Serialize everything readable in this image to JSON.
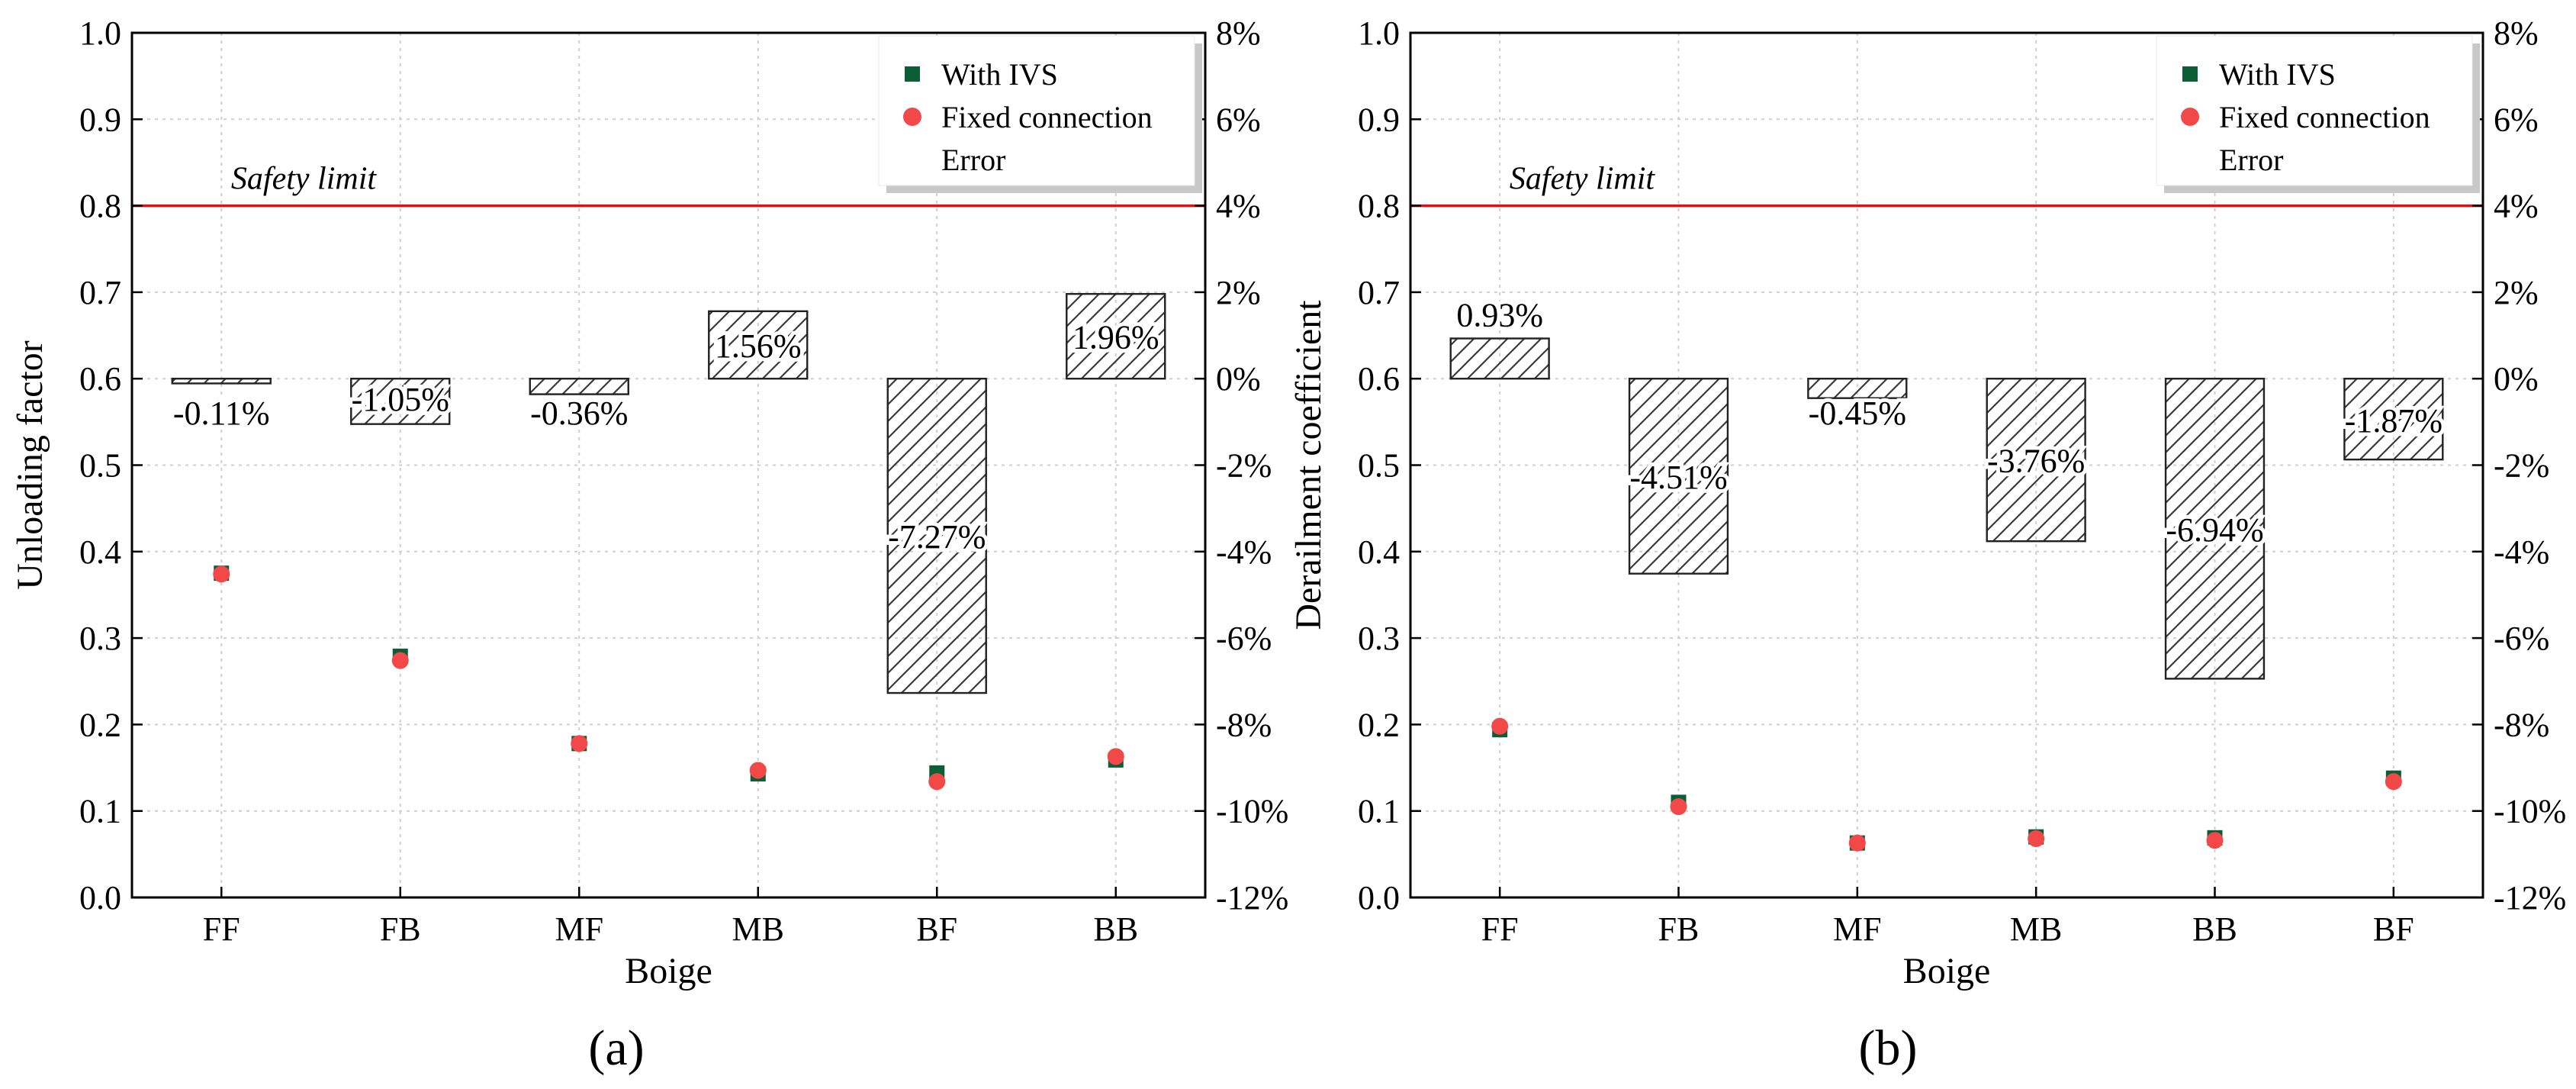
{
  "chart_data": [
    {
      "type": "bar+scatter",
      "panel_label": "(a)",
      "xlabel": "Boige",
      "ylabel": "Unloading factor",
      "categories": [
        "FF",
        "FB",
        "MF",
        "MB",
        "BF",
        "BB"
      ],
      "ylim": [
        0.0,
        1.0
      ],
      "y_ticks": [
        "0.0",
        "0.1",
        "0.2",
        "0.3",
        "0.4",
        "0.5",
        "0.6",
        "0.7",
        "0.8",
        "0.9",
        "1.0"
      ],
      "y2lim": [
        -12,
        8
      ],
      "y2_ticks": [
        "-12%",
        "-10%",
        "-8%",
        "-6%",
        "-4%",
        "-2%",
        "0%",
        "2%",
        "4%",
        "6%",
        "8%"
      ],
      "safety_limit": {
        "value": 0.8,
        "label": "Safety limit",
        "color": "#e01010"
      },
      "legend": {
        "placement": "top-right",
        "entries": [
          "With IVS",
          "Fixed connection",
          "Error"
        ]
      },
      "series": [
        {
          "name": "With IVS",
          "marker": "square",
          "color": "#0b5e36",
          "values": [
            0.375,
            0.279,
            0.178,
            0.143,
            0.144,
            0.159
          ]
        },
        {
          "name": "Fixed connection",
          "marker": "circle",
          "color": "#f24848",
          "values": [
            0.374,
            0.274,
            0.178,
            0.147,
            0.134,
            0.163
          ]
        },
        {
          "name": "Error",
          "marker": "hatched-bar",
          "axis": "right",
          "values": [
            -0.11,
            -1.05,
            -0.36,
            1.56,
            -7.27,
            1.96
          ],
          "labels": [
            "-0.11%",
            "-1.05%",
            "-0.36%",
            "1.56%",
            "-7.27%",
            "1.96%"
          ]
        }
      ]
    },
    {
      "type": "bar+scatter",
      "panel_label": "(b)",
      "xlabel": "Boige",
      "ylabel": "Derailment coefficient",
      "categories": [
        "FF",
        "FB",
        "MF",
        "MB",
        "BB",
        "BF"
      ],
      "ylim": [
        0.0,
        1.0
      ],
      "y_ticks": [
        "0.0",
        "0.1",
        "0.2",
        "0.3",
        "0.4",
        "0.5",
        "0.6",
        "0.7",
        "0.8",
        "0.9",
        "1.0"
      ],
      "y2lim": [
        -12,
        8
      ],
      "y2_ticks": [
        "-12%",
        "-10%",
        "-8%",
        "-6%",
        "-4%",
        "-2%",
        "0%",
        "2%",
        "4%",
        "6%",
        "8%"
      ],
      "safety_limit": {
        "value": 0.8,
        "label": "Safety limit",
        "color": "#e01010"
      },
      "legend": {
        "placement": "top-right",
        "entries": [
          "With IVS",
          "Fixed connection",
          "Error"
        ]
      },
      "series": [
        {
          "name": "With IVS",
          "marker": "square",
          "color": "#0b5e36",
          "values": [
            0.194,
            0.11,
            0.063,
            0.07,
            0.069,
            0.138
          ]
        },
        {
          "name": "Fixed connection",
          "marker": "circle",
          "color": "#f24848",
          "values": [
            0.198,
            0.105,
            0.063,
            0.068,
            0.066,
            0.134
          ]
        },
        {
          "name": "Error",
          "marker": "hatched-bar",
          "axis": "right",
          "values": [
            0.93,
            -4.51,
            -0.45,
            -3.76,
            -6.94,
            -1.87
          ],
          "labels": [
            "0.93%",
            "-4.51%",
            "-0.45%",
            "-3.76%",
            "-6.94%",
            "-1.87%"
          ]
        }
      ]
    }
  ]
}
